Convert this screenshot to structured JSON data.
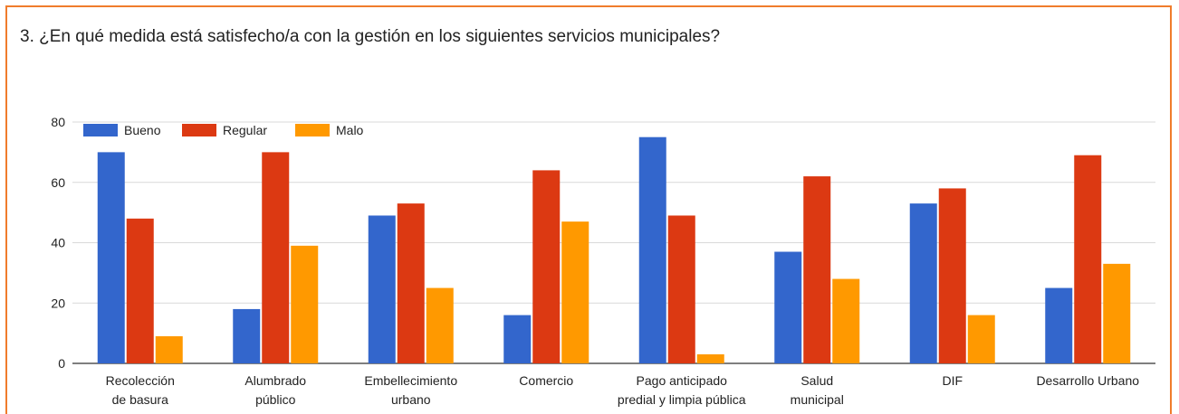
{
  "question": "3. ¿En qué medida está satisfecho/a con la gestión en los siguientes servicios municipales?",
  "chart_data": {
    "type": "bar",
    "title": "",
    "xlabel": "",
    "ylabel": "",
    "ylim": [
      0,
      80
    ],
    "yticks": [
      0,
      20,
      40,
      60,
      80
    ],
    "grid": true,
    "legend_position": "top-left",
    "categories": [
      [
        "Recolección",
        "de basura"
      ],
      [
        "Alumbrado",
        "público"
      ],
      [
        "Embellecimiento",
        "urbano"
      ],
      [
        "Comercio"
      ],
      [
        "Pago anticipado",
        "predial y limpia pública"
      ],
      [
        "Salud",
        "municipal"
      ],
      [
        "DIF"
      ],
      [
        "Desarrollo Urbano"
      ]
    ],
    "series": [
      {
        "name": "Bueno",
        "color": "#3366cc",
        "values": [
          70,
          18,
          49,
          16,
          75,
          37,
          53,
          25
        ]
      },
      {
        "name": "Regular",
        "color": "#dc3912",
        "values": [
          48,
          70,
          53,
          64,
          49,
          62,
          58,
          69
        ]
      },
      {
        "name": "Malo",
        "color": "#ff9900",
        "values": [
          9,
          39,
          25,
          47,
          3,
          28,
          16,
          33
        ]
      }
    ]
  }
}
